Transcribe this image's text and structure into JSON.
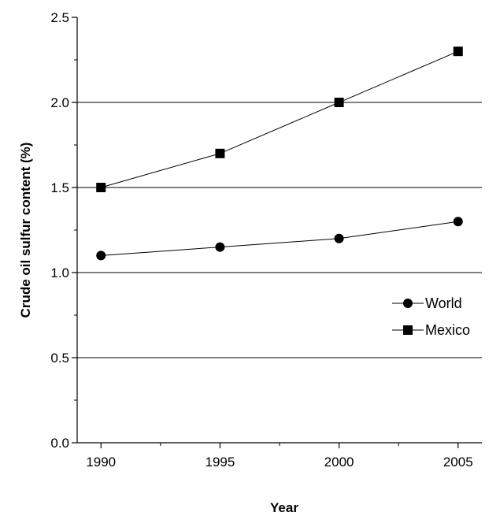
{
  "chart_data": {
    "type": "line",
    "title": "",
    "xlabel": "Year",
    "ylabel": "Crude oil sulfur content (%)",
    "x": [
      1990,
      1995,
      2000,
      2005
    ],
    "x_ticks": [
      "1990",
      "1995",
      "2000",
      "2005"
    ],
    "xlim": [
      1989,
      2006
    ],
    "ylim": [
      0,
      2.5
    ],
    "y_ticks": [
      "0.0",
      "0.5",
      "1.0",
      "1.5",
      "2.0",
      "2.5"
    ],
    "y_grid": [
      0.5,
      1.0,
      1.5,
      2.0
    ],
    "grid": "horizontal",
    "legend_position": "right",
    "series": [
      {
        "name": "World",
        "marker": "circle",
        "values": [
          1.1,
          1.15,
          1.2,
          1.3
        ]
      },
      {
        "name": "Mexico",
        "marker": "square",
        "values": [
          1.5,
          1.7,
          2.0,
          2.3
        ]
      }
    ],
    "colors": {
      "line": "#000000",
      "grid": "#000000",
      "background": "#ffffff"
    }
  }
}
